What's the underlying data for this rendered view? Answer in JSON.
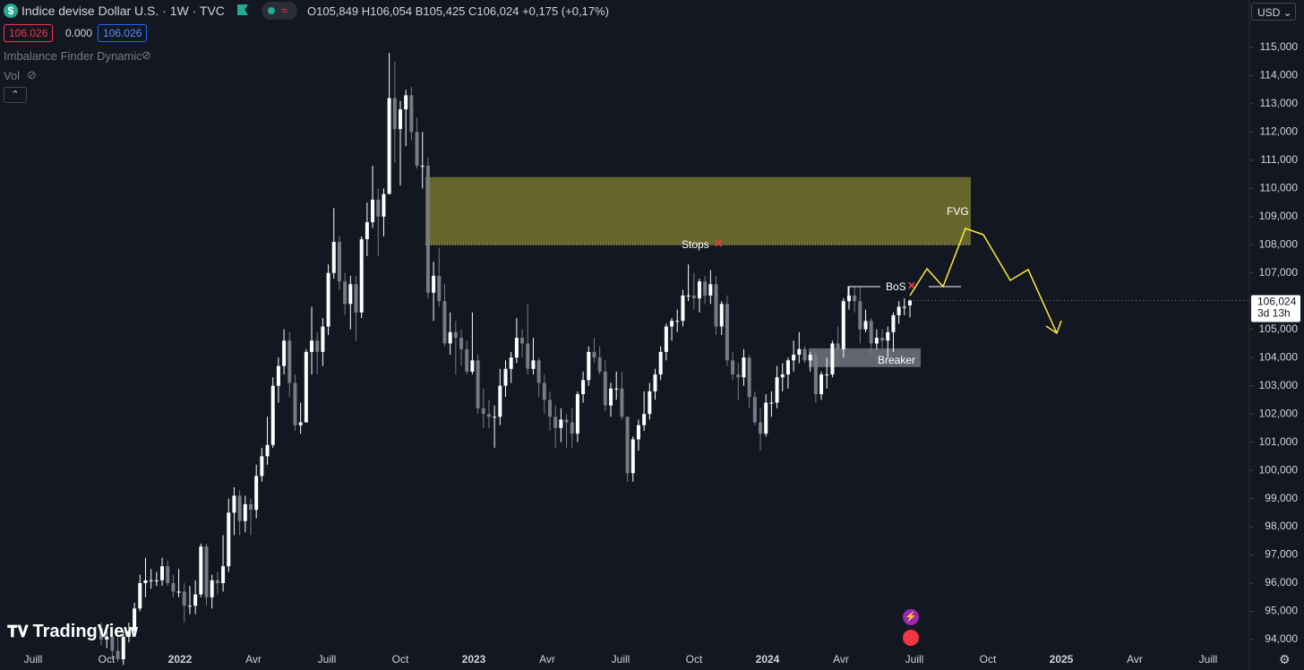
{
  "header": {
    "title": "Indice devise Dollar U.S. · 1W · TVC",
    "open": "O105,849",
    "high": "H106,054",
    "low": "B105,425",
    "close": "C106,024",
    "change": "+0,175 (+0,17%)",
    "bid": "106.026",
    "spread": "0.000",
    "ask": "106.026",
    "indicator": "Imbalance Finder Dynamic",
    "volume": "Vol",
    "currency": "USD",
    "logo": "TradingView"
  },
  "chart_data": {
    "type": "candlestick",
    "up_color": "#ffffff",
    "down_color": "#787b86",
    "ylim": [
      93.65,
      116.68
    ],
    "yticks": [
      {
        "value": 94,
        "label": "94,000"
      },
      {
        "value": 95,
        "label": "95,000"
      },
      {
        "value": 96,
        "label": "96,000"
      },
      {
        "value": 97,
        "label": "97,000"
      },
      {
        "value": 98,
        "label": "98,000"
      },
      {
        "value": 99,
        "label": "99,000"
      },
      {
        "value": 100,
        "label": "100,000"
      },
      {
        "value": 101,
        "label": "101,000"
      },
      {
        "value": 102,
        "label": "102,000"
      },
      {
        "value": 103,
        "label": "103,000"
      },
      {
        "value": 104,
        "label": "104,000"
      },
      {
        "value": 105,
        "label": "105,000"
      },
      {
        "value": 106,
        "label": "106,000"
      },
      {
        "value": 107,
        "label": "107,000"
      },
      {
        "value": 108,
        "label": "108,000"
      },
      {
        "value": 109,
        "label": "109,000"
      },
      {
        "value": 110,
        "label": "110,000"
      },
      {
        "value": 111,
        "label": "111,000"
      },
      {
        "value": 112,
        "label": "112,000"
      },
      {
        "value": 113,
        "label": "113,000"
      },
      {
        "value": 114,
        "label": "114,000"
      },
      {
        "value": 115,
        "label": "115,000"
      }
    ],
    "x_axis_labels": [
      "Juill",
      "Oct",
      "2022",
      "Avr",
      "Juill",
      "Oct",
      "2023",
      "Avr",
      "Juill",
      "Oct",
      "2024",
      "Avr",
      "Juill",
      "Oct",
      "2025",
      "Avr",
      "Juill"
    ],
    "last_price": {
      "value": 106.024,
      "label": "106,024"
    },
    "countdown": "3d 13h",
    "fvg_zone": {
      "low": 108.0,
      "high": 110.4,
      "color": "#6b6a2e"
    },
    "breaker_zone": {
      "low": 103.6,
      "high": 104.2,
      "color": "#787b86"
    },
    "annotations": {
      "stops": "Stops",
      "bos": "BoS",
      "fvg": "FVG",
      "breaker": "Breaker"
    },
    "ohlc": [
      [
        94.4,
        94.6,
        93.8,
        94.0
      ],
      [
        94.0,
        94.5,
        93.7,
        94.1
      ],
      [
        94.1,
        94.3,
        93.3,
        93.6
      ],
      [
        93.6,
        94.1,
        93.2,
        93.3
      ],
      [
        93.3,
        94.3,
        93.1,
        94.1
      ],
      [
        94.1,
        94.6,
        93.9,
        94.3
      ],
      [
        94.3,
        95.3,
        94.1,
        95.1
      ],
      [
        95.1,
        96.3,
        95.0,
        96.0
      ],
      [
        96.0,
        96.9,
        95.5,
        96.1
      ],
      [
        96.1,
        96.5,
        95.8,
        96.1
      ],
      [
        96.1,
        96.4,
        95.9,
        96.1
      ],
      [
        96.1,
        96.9,
        95.9,
        96.6
      ],
      [
        96.6,
        96.8,
        95.9,
        96.0
      ],
      [
        96.0,
        96.3,
        95.5,
        95.7
      ],
      [
        95.7,
        96.5,
        95.5,
        95.7
      ],
      [
        95.7,
        96.0,
        94.6,
        95.2
      ],
      [
        95.2,
        95.9,
        94.9,
        95.2
      ],
      [
        95.2,
        96.1,
        94.9,
        95.6
      ],
      [
        95.6,
        97.4,
        95.5,
        97.3
      ],
      [
        97.3,
        97.4,
        95.2,
        95.5
      ],
      [
        95.5,
        96.3,
        95.1,
        96.1
      ],
      [
        96.1,
        96.4,
        95.6,
        96.0
      ],
      [
        96.0,
        97.7,
        95.7,
        96.6
      ],
      [
        96.6,
        99.0,
        96.4,
        98.5
      ],
      [
        98.5,
        99.4,
        97.7,
        99.1
      ],
      [
        99.1,
        99.3,
        97.7,
        98.2
      ],
      [
        98.2,
        99.1,
        97.8,
        98.8
      ],
      [
        98.8,
        99.0,
        97.7,
        98.6
      ],
      [
        98.6,
        100.2,
        98.3,
        99.8
      ],
      [
        99.8,
        100.8,
        99.6,
        100.5
      ],
      [
        100.5,
        101.9,
        100.2,
        100.9
      ],
      [
        100.9,
        103.3,
        100.8,
        103.0
      ],
      [
        103.0,
        104.0,
        102.4,
        103.7
      ],
      [
        103.7,
        105.0,
        103.4,
        104.6
      ],
      [
        104.6,
        104.9,
        102.6,
        103.1
      ],
      [
        103.1,
        103.4,
        101.4,
        101.6
      ],
      [
        101.6,
        102.4,
        101.3,
        101.7
      ],
      [
        101.7,
        104.3,
        101.7,
        104.2
      ],
      [
        104.2,
        105.8,
        103.4,
        104.6
      ],
      [
        104.6,
        104.9,
        103.4,
        104.2
      ],
      [
        104.2,
        105.4,
        103.7,
        105.1
      ],
      [
        105.1,
        107.3,
        104.8,
        107.0
      ],
      [
        107.0,
        109.3,
        106.8,
        108.1
      ],
      [
        108.1,
        108.3,
        106.4,
        106.7
      ],
      [
        106.7,
        107.0,
        105.5,
        105.9
      ],
      [
        105.9,
        106.9,
        105.0,
        106.6
      ],
      [
        106.6,
        106.9,
        104.6,
        105.6
      ],
      [
        105.6,
        108.3,
        105.4,
        108.2
      ],
      [
        108.2,
        109.5,
        107.6,
        108.8
      ],
      [
        108.8,
        110.8,
        108.6,
        109.6
      ],
      [
        109.6,
        110.0,
        107.6,
        109.0
      ],
      [
        109.0,
        110.0,
        108.3,
        109.8
      ],
      [
        109.8,
        114.8,
        109.8,
        113.2
      ],
      [
        113.2,
        114.5,
        110.9,
        112.1
      ],
      [
        112.1,
        113.1,
        110.1,
        112.8
      ],
      [
        112.8,
        113.5,
        111.5,
        113.3
      ],
      [
        113.3,
        113.6,
        111.7,
        112.0
      ],
      [
        112.0,
        112.5,
        110.7,
        110.8
      ],
      [
        110.8,
        112.0,
        110.0,
        110.8
      ],
      [
        110.8,
        111.1,
        106.1,
        106.3
      ],
      [
        106.3,
        107.4,
        105.3,
        106.9
      ],
      [
        106.9,
        107.9,
        105.8,
        106.0
      ],
      [
        106.0,
        106.6,
        104.4,
        104.5
      ],
      [
        104.5,
        105.6,
        104.1,
        104.9
      ],
      [
        104.9,
        105.3,
        103.4,
        104.7
      ],
      [
        104.7,
        105.0,
        103.7,
        104.3
      ],
      [
        104.3,
        104.6,
        103.4,
        103.5
      ],
      [
        103.5,
        105.6,
        103.4,
        103.9
      ],
      [
        103.9,
        104.1,
        102.0,
        102.2
      ],
      [
        102.2,
        102.9,
        101.5,
        102.0
      ],
      [
        102.0,
        102.5,
        101.5,
        101.9
      ],
      [
        101.9,
        102.3,
        100.8,
        101.9
      ],
      [
        101.9,
        103.6,
        101.6,
        103.0
      ],
      [
        103.0,
        103.9,
        102.6,
        103.6
      ],
      [
        103.6,
        104.2,
        103.1,
        104.0
      ],
      [
        104.0,
        105.4,
        103.8,
        104.7
      ],
      [
        104.7,
        105.0,
        104.0,
        104.5
      ],
      [
        104.5,
        105.9,
        103.4,
        103.6
      ],
      [
        103.6,
        104.7,
        103.4,
        103.9
      ],
      [
        103.9,
        104.0,
        102.6,
        103.1
      ],
      [
        103.1,
        103.4,
        102.0,
        102.5
      ],
      [
        102.5,
        102.8,
        101.4,
        101.9
      ],
      [
        101.9,
        102.3,
        100.8,
        101.5
      ],
      [
        101.5,
        102.2,
        101.0,
        101.8
      ],
      [
        101.8,
        102.0,
        100.8,
        101.7
      ],
      [
        101.7,
        102.2,
        100.8,
        101.3
      ],
      [
        101.3,
        102.8,
        101.0,
        102.7
      ],
      [
        102.7,
        103.5,
        102.4,
        103.2
      ],
      [
        103.2,
        104.4,
        103.0,
        104.2
      ],
      [
        104.2,
        104.7,
        103.8,
        104.0
      ],
      [
        104.0,
        104.4,
        103.4,
        103.5
      ],
      [
        103.5,
        103.9,
        102.1,
        102.3
      ],
      [
        102.3,
        103.1,
        101.9,
        102.9
      ],
      [
        102.9,
        103.5,
        102.5,
        102.9
      ],
      [
        102.9,
        103.5,
        101.8,
        101.9
      ],
      [
        101.9,
        101.9,
        99.6,
        99.9
      ],
      [
        99.9,
        101.2,
        99.6,
        101.1
      ],
      [
        101.1,
        101.8,
        100.7,
        101.6
      ],
      [
        101.6,
        102.8,
        101.4,
        102.0
      ],
      [
        102.0,
        103.1,
        101.8,
        102.8
      ],
      [
        102.8,
        103.6,
        102.5,
        103.4
      ],
      [
        103.4,
        104.4,
        103.2,
        104.2
      ],
      [
        104.2,
        105.2,
        103.9,
        105.1
      ],
      [
        105.1,
        105.4,
        104.6,
        105.3
      ],
      [
        105.3,
        105.7,
        104.9,
        105.3
      ],
      [
        105.3,
        106.4,
        105.1,
        106.2
      ],
      [
        106.2,
        107.3,
        106.0,
        106.2
      ],
      [
        106.2,
        107.0,
        105.7,
        106.1
      ],
      [
        106.1,
        106.8,
        105.6,
        106.7
      ],
      [
        106.7,
        106.9,
        105.9,
        106.2
      ],
      [
        106.2,
        107.1,
        105.9,
        106.6
      ],
      [
        106.6,
        106.9,
        104.8,
        105.1
      ],
      [
        105.1,
        106.0,
        104.8,
        105.9
      ],
      [
        105.9,
        106.2,
        103.7,
        103.9
      ],
      [
        103.9,
        104.2,
        103.2,
        103.4
      ],
      [
        103.4,
        103.8,
        102.5,
        103.3
      ],
      [
        103.3,
        104.3,
        103.0,
        104.0
      ],
      [
        104.0,
        104.1,
        102.2,
        102.6
      ],
      [
        102.6,
        102.8,
        101.6,
        101.7
      ],
      [
        101.7,
        102.2,
        100.7,
        101.3
      ],
      [
        101.3,
        102.7,
        101.2,
        102.4
      ],
      [
        102.4,
        102.8,
        101.9,
        102.4
      ],
      [
        102.4,
        103.7,
        102.2,
        103.3
      ],
      [
        103.3,
        103.8,
        102.8,
        103.4
      ],
      [
        103.4,
        104.0,
        102.9,
        103.9
      ],
      [
        103.9,
        104.6,
        103.5,
        104.1
      ],
      [
        104.1,
        104.9,
        103.8,
        104.3
      ],
      [
        104.3,
        104.4,
        103.8,
        103.9
      ],
      [
        103.9,
        104.2,
        103.5,
        104.1
      ],
      [
        104.1,
        104.2,
        102.4,
        102.7
      ],
      [
        102.7,
        103.5,
        102.5,
        103.4
      ],
      [
        103.4,
        104.0,
        102.9,
        103.4
      ],
      [
        103.4,
        104.6,
        103.3,
        104.5
      ],
      [
        104.5,
        105.1,
        103.8,
        104.3
      ],
      [
        104.3,
        106.1,
        104.0,
        106.0
      ],
      [
        106.0,
        106.5,
        105.7,
        106.2
      ],
      [
        106.2,
        106.5,
        105.6,
        106.0
      ],
      [
        106.0,
        106.5,
        104.5,
        105.0
      ],
      [
        105.0,
        105.7,
        104.9,
        105.3
      ],
      [
        105.3,
        105.4,
        104.1,
        104.5
      ],
      [
        104.5,
        105.0,
        104.3,
        104.7
      ],
      [
        104.7,
        105.0,
        104.3,
        104.6
      ],
      [
        104.6,
        105.1,
        104.0,
        104.9
      ],
      [
        104.9,
        105.6,
        104.2,
        105.5
      ],
      [
        105.5,
        106.0,
        105.2,
        105.8
      ],
      [
        105.8,
        106.1,
        105.5,
        105.8
      ],
      [
        105.849,
        106.054,
        105.425,
        106.024
      ]
    ]
  }
}
